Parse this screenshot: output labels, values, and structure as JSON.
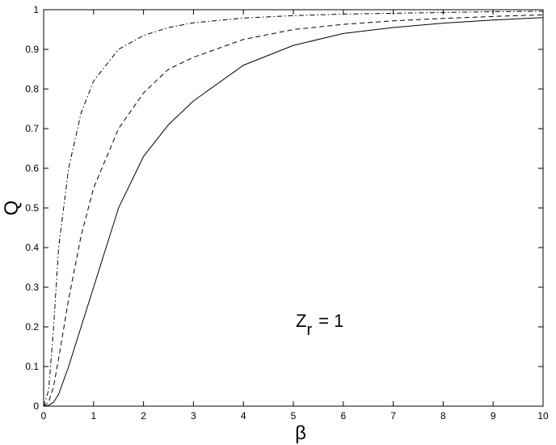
{
  "chart_data": {
    "type": "line",
    "x_label": "β",
    "y_label": "Q",
    "annotation": {
      "text": "Z",
      "subscript": "r",
      "suffix": "= 1"
    },
    "x": [
      0,
      0.1,
      0.2,
      0.3,
      0.5,
      0.75,
      1,
      1.5,
      2,
      2.5,
      3,
      4,
      5,
      6,
      7,
      8,
      9,
      10
    ],
    "series": [
      {
        "color": "#000000",
        "dash": "solid",
        "values": [
          0,
          0.002,
          0.01,
          0.03,
          0.1,
          0.2,
          0.3,
          0.5,
          0.63,
          0.71,
          0.77,
          0.86,
          0.91,
          0.94,
          0.955,
          0.966,
          0.974,
          0.98
        ]
      },
      {
        "color": "#000000",
        "dash": "dashed",
        "values": [
          0,
          0.01,
          0.05,
          0.12,
          0.27,
          0.43,
          0.55,
          0.7,
          0.79,
          0.85,
          0.88,
          0.925,
          0.95,
          0.963,
          0.972,
          0.978,
          0.983,
          0.987
        ]
      },
      {
        "color": "#000000",
        "dash": "dashdot",
        "values": [
          0,
          0.04,
          0.2,
          0.4,
          0.6,
          0.74,
          0.82,
          0.9,
          0.935,
          0.955,
          0.967,
          0.979,
          0.985,
          0.989,
          0.991,
          0.993,
          0.995,
          0.996
        ]
      }
    ],
    "xlim": [
      0,
      10
    ],
    "xticks": [
      0,
      1,
      2,
      3,
      4,
      5,
      6,
      7,
      8,
      9,
      10
    ],
    "ylim": [
      0,
      1
    ],
    "yticks": [
      0,
      0.1,
      0.2,
      0.3,
      0.4,
      0.5,
      0.6,
      0.7,
      0.8,
      0.9,
      1
    ],
    "grid": false
  }
}
